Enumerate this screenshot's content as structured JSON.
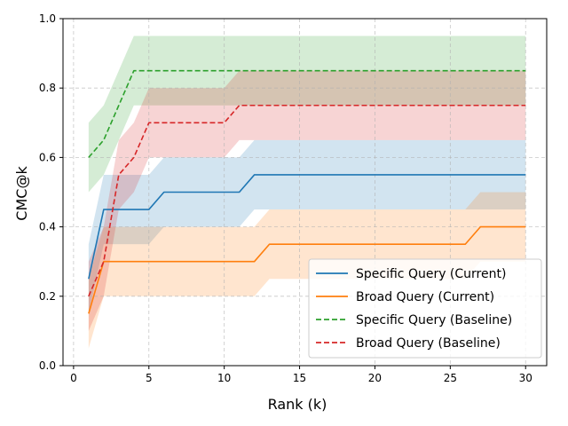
{
  "chart_data": {
    "type": "line",
    "title": "",
    "xlabel": "Rank (k)",
    "ylabel": "CMC@k",
    "xlim": [
      -0.7,
      31.4
    ],
    "ylim": [
      0.0,
      1.0
    ],
    "xticks": [
      0,
      5,
      10,
      15,
      20,
      25,
      30
    ],
    "yticks": [
      0.0,
      0.2,
      0.4,
      0.6,
      0.8,
      1.0
    ],
    "xtick_labels": [
      "0",
      "5",
      "10",
      "15",
      "20",
      "25",
      "30"
    ],
    "ytick_labels": [
      "0.0",
      "0.2",
      "0.4",
      "0.6",
      "0.8",
      "1.0"
    ],
    "grid": true,
    "legend_position": "bottom-right",
    "x": [
      1,
      2,
      3,
      4,
      5,
      6,
      7,
      8,
      9,
      10,
      11,
      12,
      13,
      14,
      15,
      16,
      17,
      18,
      19,
      20,
      21,
      22,
      23,
      24,
      25,
      26,
      27,
      28,
      29,
      30
    ],
    "series": [
      {
        "name": "Specific Query (Current)",
        "color": "#1f77b4",
        "linestyle": "solid",
        "values": [
          0.25,
          0.45,
          0.45,
          0.45,
          0.45,
          0.5,
          0.5,
          0.5,
          0.5,
          0.5,
          0.5,
          0.55,
          0.55,
          0.55,
          0.55,
          0.55,
          0.55,
          0.55,
          0.55,
          0.55,
          0.55,
          0.55,
          0.55,
          0.55,
          0.55,
          0.55,
          0.55,
          0.55,
          0.55,
          0.55
        ],
        "lower": [
          0.15,
          0.35,
          0.35,
          0.35,
          0.35,
          0.4,
          0.4,
          0.4,
          0.4,
          0.4,
          0.4,
          0.45,
          0.45,
          0.45,
          0.45,
          0.45,
          0.45,
          0.45,
          0.45,
          0.45,
          0.45,
          0.45,
          0.45,
          0.45,
          0.45,
          0.45,
          0.45,
          0.45,
          0.45,
          0.45
        ],
        "upper": [
          0.35,
          0.55,
          0.55,
          0.55,
          0.55,
          0.6,
          0.6,
          0.6,
          0.6,
          0.6,
          0.6,
          0.65,
          0.65,
          0.65,
          0.65,
          0.65,
          0.65,
          0.65,
          0.65,
          0.65,
          0.65,
          0.65,
          0.65,
          0.65,
          0.65,
          0.65,
          0.65,
          0.65,
          0.65,
          0.65
        ]
      },
      {
        "name": "Broad Query (Current)",
        "color": "#ff7f0e",
        "linestyle": "solid",
        "values": [
          0.15,
          0.3,
          0.3,
          0.3,
          0.3,
          0.3,
          0.3,
          0.3,
          0.3,
          0.3,
          0.3,
          0.3,
          0.35,
          0.35,
          0.35,
          0.35,
          0.35,
          0.35,
          0.35,
          0.35,
          0.35,
          0.35,
          0.35,
          0.35,
          0.35,
          0.35,
          0.4,
          0.4,
          0.4,
          0.4
        ],
        "lower": [
          0.05,
          0.2,
          0.2,
          0.2,
          0.2,
          0.2,
          0.2,
          0.2,
          0.2,
          0.2,
          0.2,
          0.2,
          0.25,
          0.25,
          0.25,
          0.25,
          0.25,
          0.25,
          0.25,
          0.25,
          0.25,
          0.25,
          0.25,
          0.25,
          0.25,
          0.25,
          0.3,
          0.3,
          0.3,
          0.3
        ],
        "upper": [
          0.25,
          0.4,
          0.4,
          0.4,
          0.4,
          0.4,
          0.4,
          0.4,
          0.4,
          0.4,
          0.4,
          0.4,
          0.45,
          0.45,
          0.45,
          0.45,
          0.45,
          0.45,
          0.45,
          0.45,
          0.45,
          0.45,
          0.45,
          0.45,
          0.45,
          0.45,
          0.5,
          0.5,
          0.5,
          0.5
        ]
      },
      {
        "name": "Specific Query (Baseline)",
        "color": "#2ca02c",
        "linestyle": "dashed",
        "values": [
          0.6,
          0.65,
          0.75,
          0.85,
          0.85,
          0.85,
          0.85,
          0.85,
          0.85,
          0.85,
          0.85,
          0.85,
          0.85,
          0.85,
          0.85,
          0.85,
          0.85,
          0.85,
          0.85,
          0.85,
          0.85,
          0.85,
          0.85,
          0.85,
          0.85,
          0.85,
          0.85,
          0.85,
          0.85,
          0.85
        ],
        "lower": [
          0.5,
          0.55,
          0.65,
          0.75,
          0.75,
          0.75,
          0.75,
          0.75,
          0.75,
          0.75,
          0.75,
          0.75,
          0.75,
          0.75,
          0.75,
          0.75,
          0.75,
          0.75,
          0.75,
          0.75,
          0.75,
          0.75,
          0.75,
          0.75,
          0.75,
          0.75,
          0.75,
          0.75,
          0.75,
          0.75
        ],
        "upper": [
          0.7,
          0.75,
          0.85,
          0.95,
          0.95,
          0.95,
          0.95,
          0.95,
          0.95,
          0.95,
          0.95,
          0.95,
          0.95,
          0.95,
          0.95,
          0.95,
          0.95,
          0.95,
          0.95,
          0.95,
          0.95,
          0.95,
          0.95,
          0.95,
          0.95,
          0.95,
          0.95,
          0.95,
          0.95,
          0.95
        ]
      },
      {
        "name": "Broad Query (Baseline)",
        "color": "#d62728",
        "linestyle": "dashed",
        "values": [
          0.2,
          0.3,
          0.55,
          0.6,
          0.7,
          0.7,
          0.7,
          0.7,
          0.7,
          0.7,
          0.75,
          0.75,
          0.75,
          0.75,
          0.75,
          0.75,
          0.75,
          0.75,
          0.75,
          0.75,
          0.75,
          0.75,
          0.75,
          0.75,
          0.75,
          0.75,
          0.75,
          0.75,
          0.75,
          0.75
        ],
        "lower": [
          0.1,
          0.2,
          0.45,
          0.5,
          0.6,
          0.6,
          0.6,
          0.6,
          0.6,
          0.6,
          0.65,
          0.65,
          0.65,
          0.65,
          0.65,
          0.65,
          0.65,
          0.65,
          0.65,
          0.65,
          0.65,
          0.65,
          0.65,
          0.65,
          0.65,
          0.65,
          0.65,
          0.65,
          0.65,
          0.65
        ],
        "upper": [
          0.3,
          0.4,
          0.65,
          0.7,
          0.8,
          0.8,
          0.8,
          0.8,
          0.8,
          0.8,
          0.85,
          0.85,
          0.85,
          0.85,
          0.85,
          0.85,
          0.85,
          0.85,
          0.85,
          0.85,
          0.85,
          0.85,
          0.85,
          0.85,
          0.85,
          0.85,
          0.85,
          0.85,
          0.85,
          0.85
        ]
      }
    ]
  }
}
